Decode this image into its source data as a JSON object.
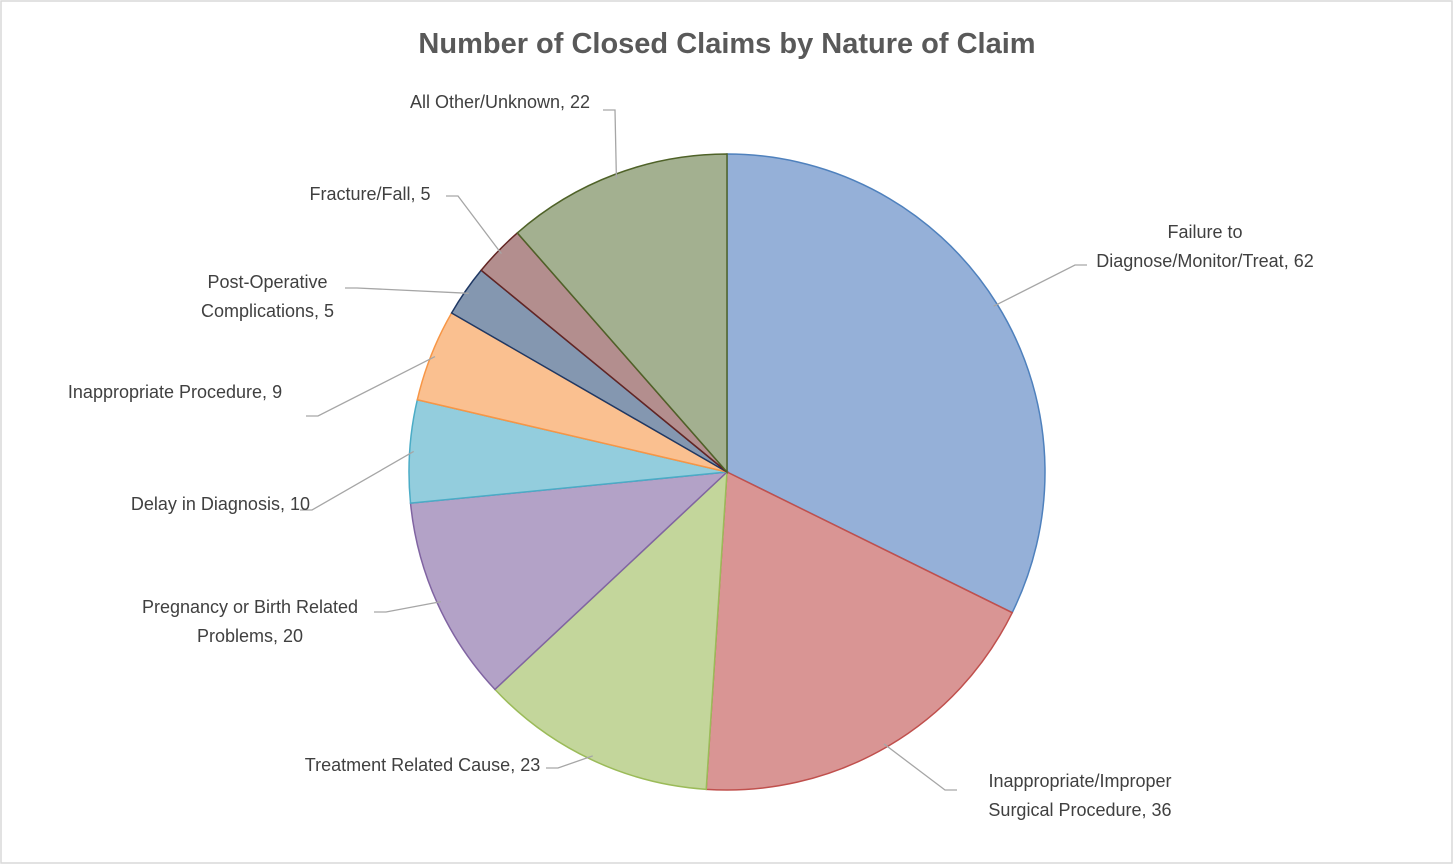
{
  "chart_data": {
    "type": "pie",
    "title": "Number of Closed Claims by Nature of Claim",
    "categories": [
      "Failure to Diagnose/Monitor/Treat",
      "Inappropriate/Improper Surgical Procedure",
      "Treatment Related Cause",
      "Pregnancy or Birth Related Problems",
      "Delay in Diagnosis",
      "Inappropriate Procedure",
      "Post-Operative Complications",
      "Fracture/Fall",
      "All Other/Unknown"
    ],
    "values": [
      62,
      36,
      23,
      20,
      10,
      9,
      5,
      5,
      22
    ],
    "colors": [
      "#95b0d8",
      "#d99594",
      "#c3d69b",
      "#b3a2c7",
      "#93cddd",
      "#fac090",
      "#8497b0",
      "#b38e8e",
      "#a3b090"
    ],
    "edge_colors": [
      "#4f81bd",
      "#c0504d",
      "#9bbb59",
      "#8064a2",
      "#4bacc6",
      "#f79646",
      "#1f3864",
      "#632523",
      "#4f6228"
    ]
  }
}
